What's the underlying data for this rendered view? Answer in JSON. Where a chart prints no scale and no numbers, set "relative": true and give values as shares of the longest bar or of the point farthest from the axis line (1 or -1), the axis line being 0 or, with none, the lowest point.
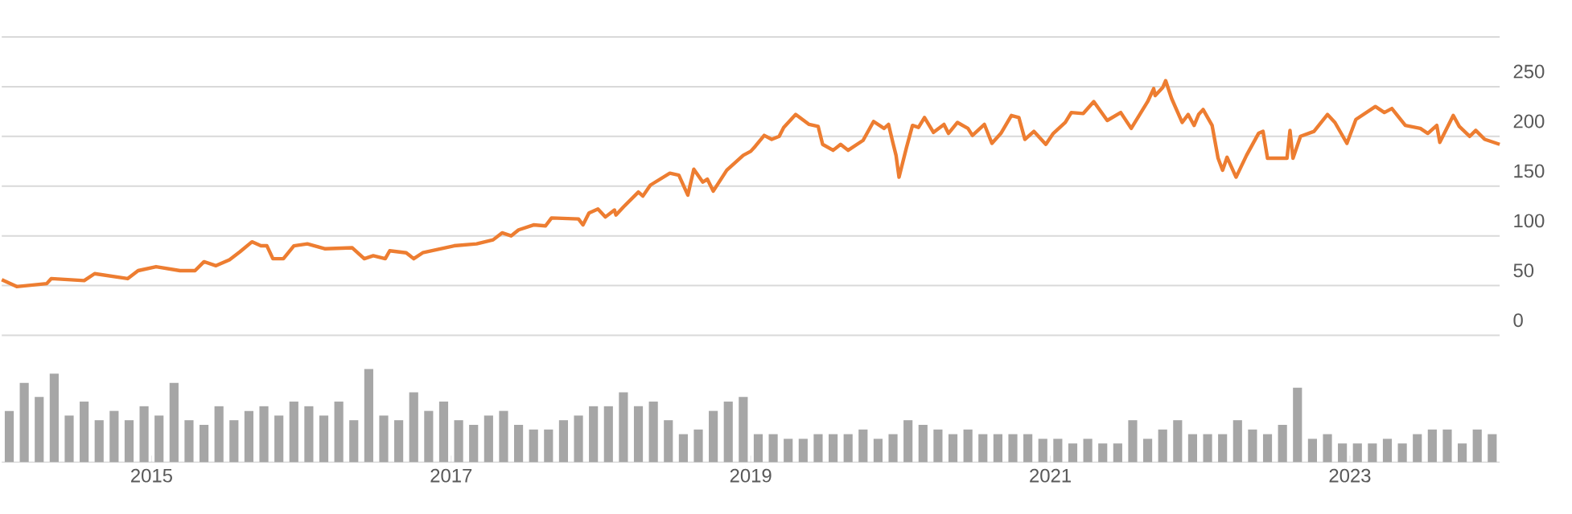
{
  "chart_data": [
    {
      "type": "line",
      "x": [
        2014.0,
        2014.1,
        2014.3,
        2014.33,
        2014.55,
        2014.62,
        2014.84,
        2014.91,
        2015.03,
        2015.19,
        2015.29,
        2015.35,
        2015.43,
        2015.52,
        2015.59,
        2015.67,
        2015.73,
        2015.77,
        2015.81,
        2015.88,
        2015.95,
        2016.04,
        2016.16,
        2016.34,
        2016.42,
        2016.48,
        2016.56,
        2016.59,
        2016.7,
        2016.75,
        2016.81,
        2017.02,
        2017.17,
        2017.28,
        2017.34,
        2017.4,
        2017.45,
        2017.55,
        2017.63,
        2017.67,
        2017.85,
        2017.88,
        2017.92,
        2017.98,
        2018.03,
        2018.09,
        2018.1,
        2018.15,
        2018.25,
        2018.28,
        2018.33,
        2018.46,
        2018.52,
        2018.58,
        2018.62,
        2018.68,
        2018.71,
        2018.75,
        2018.84,
        2018.95,
        2019.0,
        2019.03,
        2019.09,
        2019.14,
        2019.19,
        2019.22,
        2019.3,
        2019.39,
        2019.45,
        2019.48,
        2019.55,
        2019.6,
        2019.65,
        2019.75,
        2019.82,
        2019.89,
        2019.92,
        2019.95,
        2019.97,
        2019.99,
        2020.04,
        2020.08,
        2020.12,
        2020.16,
        2020.22,
        2020.29,
        2020.32,
        2020.38,
        2020.45,
        2020.48,
        2020.56,
        2020.61,
        2020.67,
        2020.74,
        2020.79,
        2020.83,
        2020.89,
        2020.97,
        2021.02,
        2021.1,
        2021.14,
        2021.22,
        2021.29,
        2021.38,
        2021.47,
        2021.54,
        2021.65,
        2021.69,
        2021.7,
        2021.75,
        2021.77,
        2021.81,
        2021.88,
        2021.92,
        2021.96,
        2021.99,
        2022.02,
        2022.08,
        2022.12,
        2022.15,
        2022.18,
        2022.24,
        2022.31,
        2022.39,
        2022.42,
        2022.45,
        2022.53,
        2022.58,
        2022.6,
        2022.62,
        2022.67,
        2022.76,
        2022.85,
        2022.9,
        2022.98,
        2023.04,
        2023.17,
        2023.23,
        2023.28,
        2023.37,
        2023.47,
        2023.52,
        2023.58,
        2023.6,
        2023.69,
        2023.73,
        2023.8,
        2023.84,
        2023.9,
        2024.0
      ],
      "values": [
        56,
        49,
        52,
        57,
        55,
        62,
        57,
        65,
        69,
        65,
        65,
        74,
        70,
        76,
        84,
        94,
        90,
        90,
        77,
        77,
        90,
        92,
        87,
        88,
        77,
        80,
        77,
        85,
        83,
        77,
        83,
        90,
        92,
        96,
        103,
        100,
        106,
        111,
        110,
        118,
        117,
        111,
        123,
        127,
        119,
        126,
        121,
        129,
        144,
        140,
        151,
        163,
        161,
        141,
        167,
        154,
        157,
        145,
        166,
        181,
        185,
        190,
        201,
        197,
        200,
        209,
        222,
        212,
        210,
        192,
        186,
        192,
        186,
        196,
        215,
        208,
        212,
        193,
        181,
        159,
        189,
        211,
        209,
        219,
        204,
        212,
        203,
        214,
        208,
        201,
        212,
        193,
        203,
        221,
        219,
        197,
        205,
        192,
        203,
        214,
        224,
        223,
        235,
        216,
        224,
        208,
        235,
        248,
        241,
        249,
        256,
        238,
        214,
        222,
        211,
        222,
        227,
        211,
        178,
        166,
        179,
        159,
        181,
        203,
        205,
        178,
        178,
        178,
        206,
        178,
        200,
        205,
        222,
        214,
        193,
        217,
        230,
        224,
        228,
        211,
        208,
        203,
        211,
        194,
        221,
        210,
        200,
        206,
        197,
        192
      ],
      "color": "#ed7d31",
      "xlim": [
        2014,
        2024
      ],
      "ylim": [
        0,
        300
      ],
      "yticks": [
        0,
        50,
        100,
        150,
        200,
        250,
        {
          "value": 300,
          "label": null
        }
      ],
      "grid": "y",
      "tick_labels": "y"
    },
    {
      "type": "bar",
      "relative": true,
      "x": [
        2014.05,
        2014.15,
        2014.25,
        2014.35,
        2014.45,
        2014.55,
        2014.65,
        2014.75,
        2014.85,
        2014.95,
        2015.05,
        2015.15,
        2015.25,
        2015.35,
        2015.45,
        2015.55,
        2015.65,
        2015.75,
        2015.85,
        2015.95,
        2016.05,
        2016.15,
        2016.25,
        2016.35,
        2016.45,
        2016.55,
        2016.65,
        2016.75,
        2016.85,
        2016.95,
        2017.05,
        2017.15,
        2017.25,
        2017.35,
        2017.45,
        2017.55,
        2017.65,
        2017.75,
        2017.85,
        2017.95,
        2018.05,
        2018.15,
        2018.25,
        2018.35,
        2018.45,
        2018.55,
        2018.65,
        2018.75,
        2018.85,
        2018.95,
        2019.05,
        2019.15,
        2019.25,
        2019.35,
        2019.45,
        2019.55,
        2019.65,
        2019.75,
        2019.85,
        2019.95,
        2020.05,
        2020.15,
        2020.25,
        2020.35,
        2020.45,
        2020.55,
        2020.65,
        2020.75,
        2020.85,
        2020.95,
        2021.05,
        2021.15,
        2021.25,
        2021.35,
        2021.45,
        2021.55,
        2021.65,
        2021.75,
        2021.85,
        2021.95,
        2022.05,
        2022.15,
        2022.25,
        2022.35,
        2022.45,
        2022.55,
        2022.65,
        2022.75,
        2022.85,
        2022.95,
        2023.05,
        2023.15,
        2023.25,
        2023.35,
        2023.45,
        2023.55,
        2023.65,
        2023.75,
        2023.85,
        2023.95
      ],
      "values": [
        0.55,
        0.85,
        0.7,
        0.95,
        0.5,
        0.65,
        0.45,
        0.55,
        0.45,
        0.6,
        0.5,
        0.85,
        0.45,
        0.4,
        0.6,
        0.45,
        0.55,
        0.6,
        0.5,
        0.65,
        0.6,
        0.5,
        0.65,
        0.45,
        1,
        0.5,
        0.45,
        0.75,
        0.55,
        0.65,
        0.45,
        0.4,
        0.5,
        0.55,
        0.4,
        0.35,
        0.35,
        0.45,
        0.5,
        0.6,
        0.6,
        0.75,
        0.6,
        0.65,
        0.45,
        0.3,
        0.35,
        0.55,
        0.65,
        0.7,
        0.3,
        0.3,
        0.25,
        0.25,
        0.3,
        0.3,
        0.3,
        0.35,
        0.25,
        0.3,
        0.45,
        0.4,
        0.35,
        0.3,
        0.35,
        0.3,
        0.3,
        0.3,
        0.3,
        0.25,
        0.25,
        0.2,
        0.25,
        0.2,
        0.2,
        0.45,
        0.25,
        0.35,
        0.45,
        0.3,
        0.3,
        0.3,
        0.45,
        0.35,
        0.3,
        0.4,
        0.8,
        0.25,
        0.3,
        0.2,
        0.2,
        0.2,
        0.25,
        0.2,
        0.3,
        0.35,
        0.35,
        0.2,
        0.35,
        0.3
      ],
      "color": "#a6a6a6",
      "xlim": [
        2014,
        2024
      ],
      "xticks": [
        2015,
        2017,
        2019,
        2021,
        2023
      ],
      "tick_labels": "x"
    }
  ]
}
